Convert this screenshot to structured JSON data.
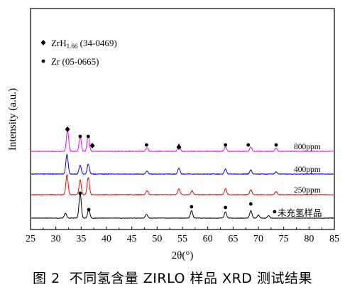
{
  "caption": "图 2  不同氢含量 ZIRLO 样品 XRD 测试结果",
  "chart_data": {
    "type": "line",
    "title": "",
    "xlabel": "2θ(°)",
    "ylabel": "Intensity (a.u.)",
    "xlim": [
      25,
      85
    ],
    "xticks": [
      "25",
      "30",
      "35",
      "40",
      "45",
      "50",
      "55",
      "60",
      "65",
      "70",
      "75",
      "80",
      "85"
    ],
    "legend_position": "top-left",
    "legend": [
      {
        "marker": "diamond",
        "label": "ZrH",
        "subscript": "1.66",
        "suffix": " (34-0469)"
      },
      {
        "marker": "dot",
        "label": "Zr (05-0665)"
      }
    ],
    "series": [
      {
        "name": "未充氢样品",
        "color": "#000000",
        "peaks": [
          [
            31.9,
            0.2
          ],
          [
            34.8,
            1.0
          ],
          [
            36.5,
            0.35
          ],
          [
            47.9,
            0.15
          ],
          [
            56.8,
            0.3
          ],
          [
            63.5,
            0.25
          ],
          [
            68.5,
            0.3
          ],
          [
            70.0,
            0.12
          ],
          [
            72.0,
            0.1
          ]
        ]
      },
      {
        "name": "250ppm",
        "color": "#ff0000",
        "peaks": [
          [
            32.2,
            1.0
          ],
          [
            34.8,
            0.75
          ],
          [
            36.4,
            0.85
          ],
          [
            48.0,
            0.2
          ],
          [
            54.3,
            0.3
          ],
          [
            56.9,
            0.2
          ],
          [
            63.5,
            0.3
          ],
          [
            68.5,
            0.25
          ],
          [
            73.5,
            0.15
          ]
        ]
      },
      {
        "name": "400ppm",
        "color": "#0000ff",
        "peaks": [
          [
            32.2,
            1.0
          ],
          [
            34.8,
            0.45
          ],
          [
            36.4,
            0.5
          ],
          [
            48.0,
            0.15
          ],
          [
            54.3,
            0.3
          ],
          [
            63.5,
            0.25
          ],
          [
            68.5,
            0.2
          ],
          [
            73.5,
            0.12
          ]
        ]
      },
      {
        "name": "800ppm",
        "color": "#ff00ff",
        "peaks": [
          [
            32.3,
            1.0
          ],
          [
            34.8,
            0.7
          ],
          [
            36.4,
            0.75
          ],
          [
            48.0,
            0.18
          ],
          [
            54.3,
            0.35
          ],
          [
            63.5,
            0.22
          ],
          [
            68.5,
            0.2
          ],
          [
            73.5,
            0.15
          ]
        ]
      }
    ],
    "markers": [
      {
        "type": "diamond",
        "series": "800ppm",
        "x": [
          32.3,
          37.2,
          54.3
        ]
      },
      {
        "type": "dot",
        "series": "800ppm",
        "x": [
          34.8,
          36.4,
          47.9,
          63.5,
          68.0,
          73.5
        ]
      },
      {
        "type": "dot",
        "series": "未充氢样品",
        "x": [
          34.8,
          36.5,
          56.8,
          63.5,
          68.5,
          73.2
        ]
      }
    ]
  }
}
